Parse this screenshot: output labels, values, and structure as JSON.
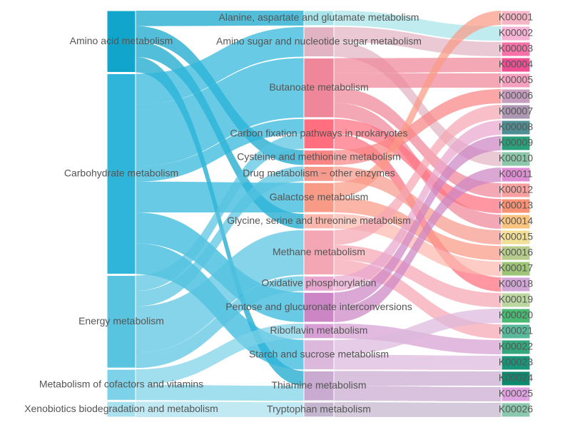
{
  "diagram": {
    "type": "sankey",
    "level1": [
      {
        "label": "Amino acid metabolism",
        "color": "#11a5cb"
      },
      {
        "label": "Carbohydrate metabolism",
        "color": "#2eb5d9"
      },
      {
        "label": "Energy metabolism",
        "color": "#58c4e0"
      },
      {
        "label": "Metabolism of cofactors and vitamins",
        "color": "#7dd1e8"
      },
      {
        "label": "Xenobiotics biodegradation and metabolism",
        "color": "#a9e1ef"
      }
    ],
    "level2": [
      {
        "label": "Alanine, aspartate and glutamate metabolism",
        "color": "#a8e4ea"
      },
      {
        "label": "Amino sugar and nucleotide sugar metabolism",
        "color": "#e2b3c3"
      },
      {
        "label": "Butanoate metabolism",
        "color": "#f08699"
      },
      {
        "label": "Carbon fixation pathways in prokaryotes",
        "color": "#ff6f7f"
      },
      {
        "label": "Cysteine and methionine metabolism",
        "color": "#fa8585"
      },
      {
        "label": "Drug metabolism − other enzymes",
        "color": "#f79a8e"
      },
      {
        "label": "Galactose metabolism",
        "color": "#f99a86"
      },
      {
        "label": "Glycine, serine and threonine metabolism",
        "color": "#fbb8ae"
      },
      {
        "label": "Methane metabolism",
        "color": "#f5a6b4"
      },
      {
        "label": "Oxidative phosphorylation",
        "color": "#e9a6cf"
      },
      {
        "label": "Pentose and glucuronate interconversions",
        "color": "#cd86c5"
      },
      {
        "label": "Riboflavin metabolism",
        "color": "#d79fd4"
      },
      {
        "label": "Starch and sucrose metabolism",
        "color": "#dcb9dc"
      },
      {
        "label": "Thiamine metabolism",
        "color": "#c9abd1"
      },
      {
        "label": "Tryptophan metabolism",
        "color": "#c4b6cf"
      }
    ],
    "level3": [
      {
        "label": "K00001",
        "color": "#f7b5c8"
      },
      {
        "label": "K00002",
        "color": "#f7b4d6"
      },
      {
        "label": "K00003",
        "color": "#f472a8"
      },
      {
        "label": "K00004",
        "color": "#ed4f92"
      },
      {
        "label": "K00005",
        "color": "#f5a0bf"
      },
      {
        "label": "K00006",
        "color": "#c79ec0"
      },
      {
        "label": "K00007",
        "color": "#ae97b3"
      },
      {
        "label": "K00008",
        "color": "#4f8e92"
      },
      {
        "label": "K00009",
        "color": "#2aa07a"
      },
      {
        "label": "K00010",
        "color": "#8cc7aa"
      },
      {
        "label": "K00011",
        "color": "#df8ed4"
      },
      {
        "label": "K00012",
        "color": "#f6a1a0"
      },
      {
        "label": "K00013",
        "color": "#f99174"
      },
      {
        "label": "K00014",
        "color": "#f9c47f"
      },
      {
        "label": "K00015",
        "color": "#f1df97"
      },
      {
        "label": "K00016",
        "color": "#b7cb8d"
      },
      {
        "label": "K00017",
        "color": "#9ec477"
      },
      {
        "label": "K00018",
        "color": "#d2a6d6"
      },
      {
        "label": "K00019",
        "color": "#bcd6a0"
      },
      {
        "label": "K00020",
        "color": "#48b873"
      },
      {
        "label": "K00021",
        "color": "#58b99a"
      },
      {
        "label": "K00022",
        "color": "#35a77f"
      },
      {
        "label": "K00023",
        "color": "#19957a"
      },
      {
        "label": "K00024",
        "color": "#10886d"
      },
      {
        "label": "K00025",
        "color": "#e0a3e2"
      },
      {
        "label": "K00026",
        "color": "#8cc8b0"
      }
    ],
    "links12": [
      {
        "source": 0,
        "target": 0,
        "value": 1
      },
      {
        "source": 0,
        "target": 4,
        "value": 1
      },
      {
        "source": 0,
        "target": 7,
        "value": 1
      },
      {
        "source": 0,
        "target": 13,
        "value": 1
      },
      {
        "source": 1,
        "target": 1,
        "value": 2
      },
      {
        "source": 1,
        "target": 2,
        "value": 4
      },
      {
        "source": 1,
        "target": 3,
        "value": 1
      },
      {
        "source": 1,
        "target": 6,
        "value": 2
      },
      {
        "source": 1,
        "target": 10,
        "value": 2
      },
      {
        "source": 1,
        "target": 12,
        "value": 2
      },
      {
        "source": 2,
        "target": 3,
        "value": 1
      },
      {
        "source": 2,
        "target": 5,
        "value": 1
      },
      {
        "source": 2,
        "target": 8,
        "value": 3
      },
      {
        "source": 2,
        "target": 9,
        "value": 1
      },
      {
        "source": 3,
        "target": 11,
        "value": 1
      },
      {
        "source": 3,
        "target": 13,
        "value": 1
      },
      {
        "source": 4,
        "target": 14,
        "value": 1
      }
    ],
    "links23": [
      {
        "source": 0,
        "target": 1,
        "value": 1
      },
      {
        "source": 1,
        "target": 2,
        "value": 1
      },
      {
        "source": 1,
        "target": 9,
        "value": 1
      },
      {
        "source": 2,
        "target": 3,
        "value": 1
      },
      {
        "source": 2,
        "target": 4,
        "value": 1
      },
      {
        "source": 2,
        "target": 11,
        "value": 1
      },
      {
        "source": 2,
        "target": 13,
        "value": 1
      },
      {
        "source": 3,
        "target": 12,
        "value": 1
      },
      {
        "source": 3,
        "target": 17,
        "value": 1
      },
      {
        "source": 4,
        "target": 5,
        "value": 1
      },
      {
        "source": 5,
        "target": 14,
        "value": 1
      },
      {
        "source": 6,
        "target": 0,
        "value": 1
      },
      {
        "source": 6,
        "target": 15,
        "value": 1
      },
      {
        "source": 7,
        "target": 16,
        "value": 1
      },
      {
        "source": 8,
        "target": 6,
        "value": 1
      },
      {
        "source": 8,
        "target": 18,
        "value": 1
      },
      {
        "source": 8,
        "target": 20,
        "value": 1
      },
      {
        "source": 9,
        "target": 7,
        "value": 1
      },
      {
        "source": 10,
        "target": 8,
        "value": 1
      },
      {
        "source": 10,
        "target": 10,
        "value": 1
      },
      {
        "source": 11,
        "target": 21,
        "value": 1
      },
      {
        "source": 12,
        "target": 19,
        "value": 1
      },
      {
        "source": 12,
        "target": 22,
        "value": 1
      },
      {
        "source": 13,
        "target": 23,
        "value": 1
      },
      {
        "source": 13,
        "target": 24,
        "value": 1
      },
      {
        "source": 14,
        "target": 25,
        "value": 1
      }
    ]
  }
}
